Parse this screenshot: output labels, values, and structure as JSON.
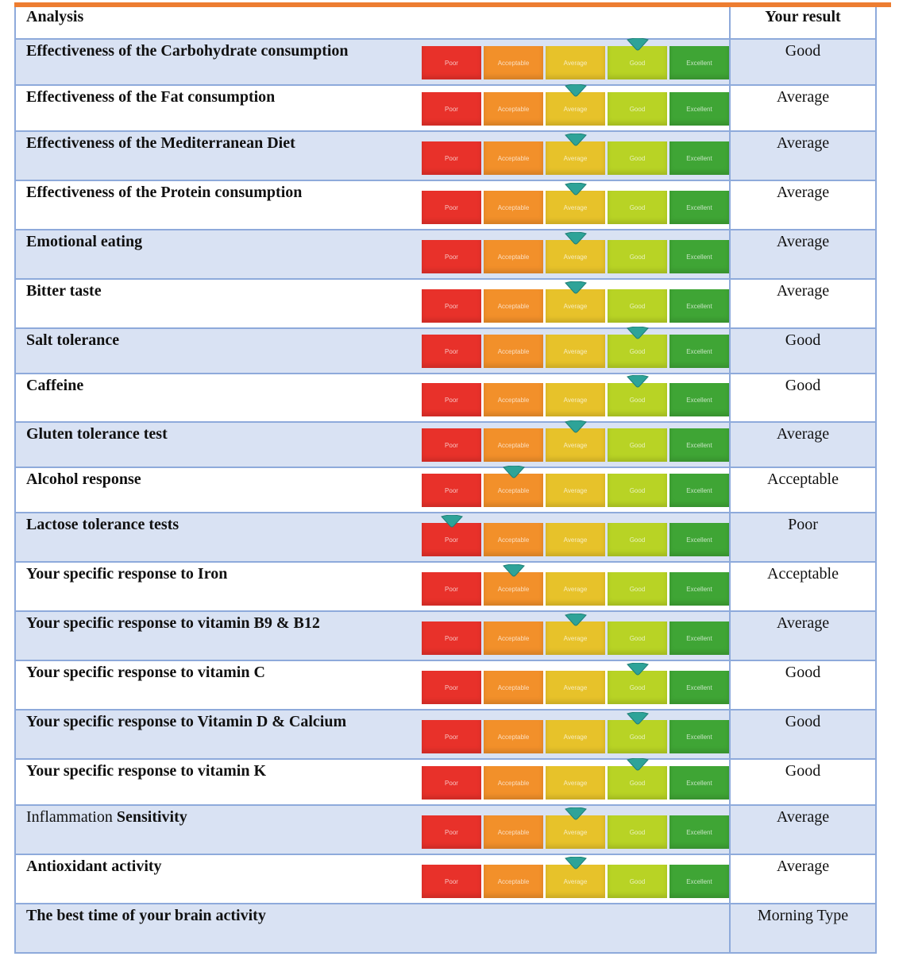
{
  "header": {
    "analysis_label": "Analysis",
    "result_label": "Your result"
  },
  "scale_labels": [
    "Poor",
    "Acceptable",
    "Average",
    "Good",
    "Excellent"
  ],
  "colors": {
    "accent_bar": "#ed7d31",
    "shaded_row": "#d9e2f3",
    "border": "#8eaadb",
    "poor": "#e8312a",
    "acceptable": "#f2902a",
    "average": "#e7c22a",
    "good": "#b8d325",
    "excellent": "#3fa535",
    "marker": "#2ea398"
  },
  "rows": [
    {
      "label": "Effectiveness of the Carbohydrate consumption",
      "result": "Good",
      "level": 3
    },
    {
      "label": "Effectiveness of the Fat consumption",
      "result": "Average",
      "level": 2
    },
    {
      "label": "Effectiveness of the Mediterranean Diet",
      "result": "Average",
      "level": 2
    },
    {
      "label": "Effectiveness of the Protein consumption",
      "result": "Average",
      "level": 2
    },
    {
      "label": "Emotional eating",
      "result": "Average",
      "level": 2
    },
    {
      "label": "Bitter taste",
      "result": "Average",
      "level": 2
    },
    {
      "label": "Salt tolerance",
      "result": "Good",
      "level": 3
    },
    {
      "label": "Caffeine",
      "result": "Good",
      "level": 3
    },
    {
      "label": "Gluten tolerance test",
      "result": "Average",
      "level": 2
    },
    {
      "label": "Alcohol response",
      "result": "Acceptable",
      "level": 1
    },
    {
      "label": "Lactose tolerance tests",
      "result": "Poor",
      "level": 0
    },
    {
      "label": "Your specific response to Iron",
      "result": "Acceptable",
      "level": 1
    },
    {
      "label": "Your specific response to vitamin B9 & B12",
      "result": "Average",
      "level": 2
    },
    {
      "label": "Your specific response to vitamin C",
      "result": "Good",
      "level": 3
    },
    {
      "label": "Your specific response to Vitamin D & Calcium",
      "result": "Good",
      "level": 3
    },
    {
      "label": "Your specific response to vitamin K",
      "result": "Good",
      "level": 3
    },
    {
      "label_normal": "Inflammation",
      "label_bold": "Sensitivity",
      "result": "Average",
      "level": 2
    },
    {
      "label": "Antioxidant activity",
      "result": "Average",
      "level": 2
    }
  ],
  "last_row": {
    "label": "The best time of your brain activity",
    "result": "Morning Type"
  }
}
